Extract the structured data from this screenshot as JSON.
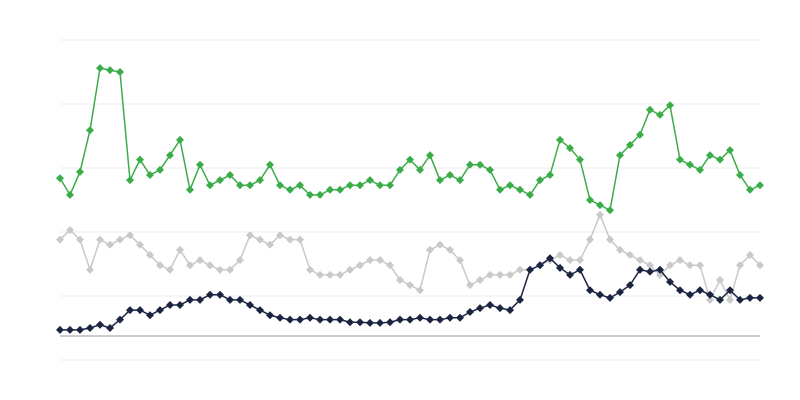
{
  "chart_data": {
    "type": "line",
    "x": [
      0,
      1,
      2,
      3,
      4,
      5,
      6,
      7,
      8,
      9,
      10,
      11,
      12,
      13,
      14,
      15,
      16,
      17,
      18,
      19,
      20,
      21,
      22,
      23,
      24,
      25,
      26,
      27,
      28,
      29,
      30,
      31,
      32,
      33,
      34,
      35,
      36,
      37,
      38,
      39,
      40,
      41,
      42,
      43,
      44,
      45,
      46,
      47,
      48,
      49,
      50,
      51,
      52,
      53,
      54,
      55,
      56,
      57,
      58,
      59,
      60,
      61,
      62,
      63,
      64,
      65,
      66,
      67,
      68,
      69,
      70
    ],
    "xlim": [
      0,
      70
    ],
    "ylim": [
      0,
      5
    ],
    "gridlines": [
      0,
      1,
      2,
      3,
      4,
      5
    ],
    "baseline": 0.375,
    "series": [
      {
        "color": "#3aad48",
        "values": [
          2.84,
          2.58,
          2.94,
          3.59,
          4.56,
          4.53,
          4.5,
          2.81,
          3.13,
          2.89,
          2.97,
          3.2,
          3.44,
          2.66,
          3.05,
          2.73,
          2.81,
          2.89,
          2.73,
          2.73,
          2.81,
          3.05,
          2.73,
          2.66,
          2.73,
          2.58,
          2.58,
          2.66,
          2.66,
          2.73,
          2.73,
          2.81,
          2.73,
          2.73,
          2.97,
          3.13,
          2.97,
          3.2,
          2.81,
          2.89,
          2.81,
          3.05,
          3.05,
          2.97,
          2.66,
          2.73,
          2.66,
          2.58,
          2.81,
          2.89,
          3.44,
          3.31,
          3.13,
          2.5,
          2.42,
          2.34,
          3.2,
          3.36,
          3.52,
          3.91,
          3.83,
          3.98,
          3.13,
          3.05,
          2.97,
          3.2,
          3.13,
          3.28,
          2.89,
          2.66,
          2.73
        ]
      },
      {
        "color": "#c9c9c9",
        "values": [
          1.88,
          2.03,
          1.88,
          1.41,
          1.88,
          1.8,
          1.88,
          1.95,
          1.8,
          1.64,
          1.48,
          1.41,
          1.72,
          1.48,
          1.56,
          1.48,
          1.41,
          1.41,
          1.56,
          1.95,
          1.88,
          1.8,
          1.95,
          1.88,
          1.88,
          1.41,
          1.33,
          1.33,
          1.33,
          1.41,
          1.48,
          1.56,
          1.56,
          1.48,
          1.25,
          1.17,
          1.09,
          1.72,
          1.8,
          1.72,
          1.56,
          1.17,
          1.25,
          1.33,
          1.33,
          1.33,
          1.41,
          1.41,
          1.48,
          1.56,
          1.64,
          1.56,
          1.56,
          1.88,
          2.27,
          1.88,
          1.72,
          1.64,
          1.56,
          1.48,
          1.33,
          1.48,
          1.56,
          1.48,
          1.48,
          0.94,
          1.25,
          0.94,
          1.48,
          1.64,
          1.48
        ]
      },
      {
        "color": "#1b2440",
        "values": [
          0.47,
          0.47,
          0.47,
          0.5,
          0.55,
          0.5,
          0.63,
          0.78,
          0.78,
          0.7,
          0.78,
          0.86,
          0.86,
          0.94,
          0.94,
          1.02,
          1.02,
          0.94,
          0.94,
          0.86,
          0.78,
          0.7,
          0.66,
          0.63,
          0.63,
          0.66,
          0.63,
          0.63,
          0.63,
          0.59,
          0.59,
          0.58,
          0.58,
          0.59,
          0.63,
          0.63,
          0.66,
          0.63,
          0.63,
          0.66,
          0.66,
          0.75,
          0.81,
          0.86,
          0.81,
          0.78,
          0.94,
          1.41,
          1.48,
          1.59,
          1.44,
          1.33,
          1.41,
          1.09,
          1.02,
          0.97,
          1.06,
          1.17,
          1.41,
          1.38,
          1.41,
          1.22,
          1.09,
          1.02,
          1.09,
          1.02,
          0.94,
          1.09,
          0.94,
          0.97,
          0.97
        ]
      }
    ]
  }
}
